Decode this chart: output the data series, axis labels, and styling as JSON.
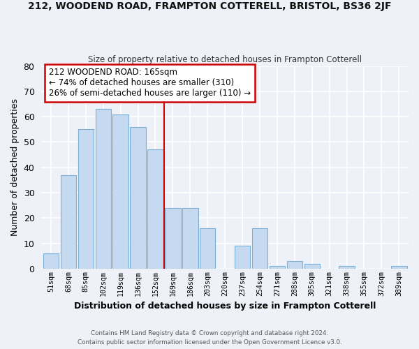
{
  "title1": "212, WOODEND ROAD, FRAMPTON COTTERELL, BRISTOL, BS36 2JF",
  "title2": "Size of property relative to detached houses in Frampton Cotterell",
  "xlabel": "Distribution of detached houses by size in Frampton Cotterell",
  "ylabel": "Number of detached properties",
  "bar_color": "#c5daf0",
  "bar_edge_color": "#7ab0d8",
  "categories": [
    "51sqm",
    "68sqm",
    "85sqm",
    "102sqm",
    "119sqm",
    "136sqm",
    "152sqm",
    "169sqm",
    "186sqm",
    "203sqm",
    "220sqm",
    "237sqm",
    "254sqm",
    "271sqm",
    "288sqm",
    "305sqm",
    "321sqm",
    "338sqm",
    "355sqm",
    "372sqm",
    "389sqm"
  ],
  "values": [
    6,
    37,
    55,
    63,
    61,
    56,
    47,
    24,
    24,
    16,
    0,
    9,
    16,
    1,
    3,
    2,
    0,
    1,
    0,
    0,
    1
  ],
  "ylim": [
    0,
    80
  ],
  "yticks": [
    0,
    10,
    20,
    30,
    40,
    50,
    60,
    70,
    80
  ],
  "vline_color": "#cc0000",
  "annotation_title": "212 WOODEND ROAD: 165sqm",
  "annotation_line1": "← 74% of detached houses are smaller (310)",
  "annotation_line2": "26% of semi-detached houses are larger (110) →",
  "annotation_box_color": "#ffffff",
  "annotation_box_edge": "#cc0000",
  "footer1": "Contains HM Land Registry data © Crown copyright and database right 2024.",
  "footer2": "Contains public sector information licensed under the Open Government Licence v3.0.",
  "background_color": "#eef2f8"
}
